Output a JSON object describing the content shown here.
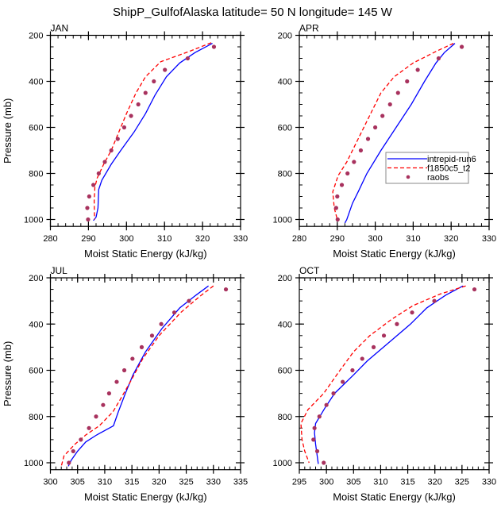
{
  "chart_data": {
    "type": "line",
    "title": "ShipP_GulfofAlaska  latitude= 50 N longitude= 145 W",
    "legend": {
      "placement": "right-middle of APR panel",
      "entries": [
        {
          "name": "intrepid-run6",
          "style": "solid",
          "color": "#0000ff"
        },
        {
          "name": "f1850c5_t2",
          "style": "dashed",
          "color": "#ff0000"
        },
        {
          "name": "raobs",
          "style": "dots",
          "color": "#a8325e"
        }
      ]
    },
    "colors": {
      "intrepid-run6": "#0000ff",
      "f1850c5_t2": "#ff0000",
      "raobs": "#a8325e"
    },
    "panels": [
      {
        "label": "JAN",
        "xlabel": "Moist Static Energy (kJ/kg)",
        "ylabel": "Pressure (mb)",
        "xlim": [
          280,
          330
        ],
        "xticks": [
          280,
          290,
          300,
          310,
          320,
          330
        ],
        "xminor": 2,
        "ylim": [
          200,
          1030
        ],
        "yticks": [
          200,
          400,
          600,
          800,
          1000
        ],
        "yaxis_inverted": true,
        "series": [
          {
            "name": "intrepid-run6",
            "p": [
              235,
              275,
              320,
              380,
              460,
              540,
              620,
              700,
              760,
              830,
              870,
              950,
              990,
              1005
            ],
            "x": [
              322.6,
              318.0,
              314.0,
              310.5,
              307.5,
              305.0,
              302.0,
              298.5,
              296.0,
              293.5,
              292.7,
              292.5,
              292.0,
              291.3
            ]
          },
          {
            "name": "f1850c5_t2",
            "p": [
              232,
              270,
              315,
              380,
              450,
              540,
              620,
              700,
              760,
              820,
              860,
              920,
              1000
            ],
            "x": [
              322.3,
              316.5,
              309.0,
              305.0,
              302.5,
              300.0,
              298.0,
              296.0,
              294.0,
              292.3,
              291.7,
              291.5,
              291.6
            ]
          },
          {
            "name": "raobs",
            "p": [
              250,
              300,
              350,
              400,
              450,
              500,
              550,
              600,
              650,
              700,
              750,
              800,
              850,
              900,
              950,
              1000
            ],
            "x": [
              323.0,
              316.1,
              310.1,
              307.2,
              305.0,
              303.1,
              301.2,
              299.4,
              297.7,
              296.0,
              294.3,
              292.7,
              291.3,
              290.2,
              289.7,
              289.9
            ]
          }
        ]
      },
      {
        "label": "APR",
        "xlabel": "Moist Static Energy (kJ/kg)",
        "ylabel": "",
        "xlim": [
          280,
          330
        ],
        "xticks": [
          280,
          290,
          300,
          310,
          320,
          330
        ],
        "xminor": 2,
        "ylim": [
          200,
          1030
        ],
        "yticks": [
          200,
          400,
          600,
          800,
          1000
        ],
        "yaxis_inverted": true,
        "series": [
          {
            "name": "intrepid-run6",
            "p": [
              235,
              275,
              320,
              400,
              500,
              600,
              700,
              800,
              880,
              930,
              1000,
              1015
            ],
            "x": [
              321.0,
              318.2,
              316.0,
              313.0,
              309.5,
              305.5,
              301.5,
              297.8,
              295.5,
              294.0,
              292.5,
              292.0
            ]
          },
          {
            "name": "f1850c5_t2",
            "p": [
              235,
              270,
              320,
              380,
              450,
              550,
              650,
              750,
              810,
              880,
              950,
              1000
            ],
            "x": [
              320.6,
              316.0,
              310.0,
              305.0,
              301.5,
              298.5,
              295.5,
              292.5,
              290.2,
              288.8,
              289.2,
              290.0
            ]
          },
          {
            "name": "raobs",
            "p": [
              250,
              300,
              350,
              400,
              450,
              500,
              550,
              600,
              650,
              700,
              750,
              800,
              850,
              900,
              950,
              1000
            ],
            "x": [
              322.8,
              316.7,
              311.2,
              308.4,
              306.0,
              303.9,
              301.9,
              300.0,
              298.1,
              296.2,
              294.4,
              292.7,
              291.2,
              290.0,
              289.7,
              290.1
            ]
          }
        ]
      },
      {
        "label": "JUL",
        "xlabel": "Moist Static Energy (kJ/kg)",
        "ylabel": "Pressure (mb)",
        "xlim": [
          300,
          335
        ],
        "xticks": [
          300,
          305,
          310,
          315,
          320,
          325,
          330,
          335
        ],
        "xminor": 1,
        "ylim": [
          200,
          1030
        ],
        "yticks": [
          200,
          400,
          600,
          800,
          1000
        ],
        "yaxis_inverted": true,
        "series": [
          {
            "name": "intrepid-run6",
            "p": [
              235,
              275,
              330,
              420,
              520,
              620,
              700,
              780,
              840,
              880,
              910,
              950,
              990,
              1015
            ],
            "x": [
              329.1,
              326.8,
              323.8,
              320.5,
              317.5,
              315.2,
              313.8,
              312.5,
              311.6,
              308.5,
              306.5,
              305.0,
              303.8,
              303.3
            ]
          },
          {
            "name": "f1850c5_t2",
            "p": [
              235,
              280,
              350,
              450,
              550,
              650,
              720,
              780,
              840,
              880,
              920,
              970,
              1015
            ],
            "x": [
              330.0,
              327.5,
              324.0,
              320.0,
              317.0,
              314.7,
              313.0,
              311.5,
              309.0,
              306.5,
              304.5,
              302.5,
              302.0
            ]
          },
          {
            "name": "raobs",
            "p": [
              250,
              300,
              350,
              400,
              450,
              500,
              550,
              600,
              650,
              700,
              750,
              800,
              850,
              900,
              950,
              1000
            ],
            "x": [
              332.3,
              325.5,
              322.8,
              320.4,
              318.7,
              316.8,
              315.1,
              313.6,
              312.2,
              310.8,
              309.7,
              308.4,
              307.1,
              305.6,
              304.2,
              303.4
            ]
          }
        ]
      },
      {
        "label": "OCT",
        "xlabel": "Moist Static Energy (kJ/kg)",
        "ylabel": "",
        "xlim": [
          295,
          330
        ],
        "xticks": [
          295,
          300,
          305,
          310,
          315,
          320,
          325,
          330
        ],
        "xminor": 1,
        "ylim": [
          200,
          1030
        ],
        "yticks": [
          200,
          400,
          600,
          800,
          1000
        ],
        "yaxis_inverted": true,
        "series": [
          {
            "name": "intrepid-run6",
            "p": [
              235,
              275,
              330,
              400,
              480,
              560,
              620,
              700,
              760,
              830,
              870,
              920,
              1005
            ],
            "x": [
              325.2,
              322.0,
              318.5,
              315.5,
              311.5,
              307.5,
              305.0,
              301.5,
              299.8,
              298.0,
              297.8,
              298.0,
              298.5
            ]
          },
          {
            "name": "f1850c5_t2",
            "p": [
              235,
              270,
              320,
              380,
              450,
              520,
              600,
              700,
              770,
              830,
              900,
              950,
              1000
            ],
            "x": [
              325.7,
              321.0,
              316.0,
              312.0,
              308.0,
              305.0,
              302.5,
              299.5,
              296.6,
              295.3,
              295.5,
              296.0,
              296.8
            ]
          },
          {
            "name": "raobs",
            "p": [
              250,
              300,
              350,
              400,
              450,
              500,
              550,
              600,
              650,
              700,
              750,
              800,
              850,
              900,
              950,
              1000
            ],
            "x": [
              327.3,
              319.9,
              315.8,
              313.0,
              310.6,
              308.7,
              306.6,
              304.8,
              303.0,
              301.3,
              300.0,
              298.7,
              297.8,
              297.6,
              298.3,
              299.5
            ]
          }
        ]
      }
    ]
  }
}
